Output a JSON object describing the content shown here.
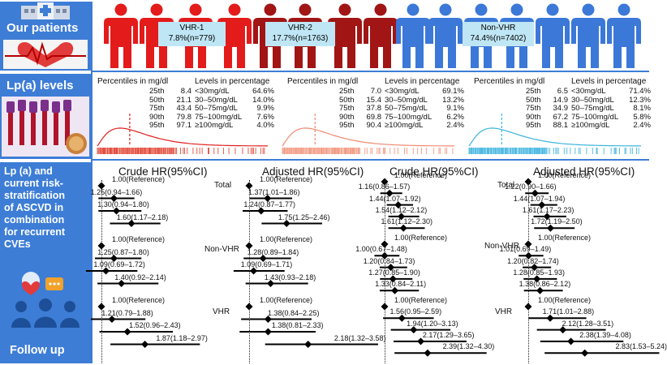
{
  "sidebar": {
    "our_patients": "Our patients",
    "lpa_levels": "Lp(a) levels",
    "risk_text": [
      "Lp (a) and",
      "current risk-",
      "stratification",
      "of ASCVD in",
      "combination",
      "for recurrent",
      "CVEs"
    ],
    "follow_up": "Follow up"
  },
  "colors": {
    "vhr1": "#e31b1b",
    "vhr2": "#a11515",
    "nonvhr": "#3b78d8",
    "accent": "#3d7dd6"
  },
  "groups": [
    {
      "name": "VHR-1",
      "share": "7.8%(n=779)",
      "color": "#e31b1b",
      "pct_title": "Percentiles in mg/dl",
      "lvl_title": "Levels in percentage",
      "percentiles": [
        [
          "25th",
          "8.4"
        ],
        [
          "50th",
          "21.1"
        ],
        [
          "75th",
          "43.4"
        ],
        [
          "90th",
          "79.8"
        ],
        [
          "95th",
          "97.1"
        ]
      ],
      "levels": [
        [
          "<30mg/dL",
          "64.6%"
        ],
        [
          "30–50mg/dL",
          "14.0%"
        ],
        [
          "50–75mg/dL",
          "9.9%"
        ],
        [
          "75–100mg/dL",
          "7.6%"
        ],
        [
          "≥100mg/dL",
          "4.0%"
        ]
      ],
      "curve_color": "#e02020",
      "rug_color": "#e24a3a"
    },
    {
      "name": "VHR-2",
      "share": "17.7%(n=1763)",
      "color": "#a11515",
      "pct_title": "Percentiles in mg/dl",
      "lvl_title": "Levels in percentage",
      "percentiles": [
        [
          "25th",
          "7.0"
        ],
        [
          "50th",
          "15.4"
        ],
        [
          "75th",
          "37.8"
        ],
        [
          "90th",
          "69.8"
        ],
        [
          "95th",
          "90.4"
        ]
      ],
      "levels": [
        [
          "<30mg/dL",
          "69.1%"
        ],
        [
          "30–50mg/dL",
          "13.2%"
        ],
        [
          "50–75mg/dL",
          "9.1%"
        ],
        [
          "75–100mg/dL",
          "6.2%"
        ],
        [
          "≥100mg/dL",
          "2.4%"
        ]
      ],
      "curve_color": "#f08a70",
      "rug_color": "#f39a82"
    },
    {
      "name": "Non-VHR",
      "share": "74.4%(n=7402)",
      "color": "#3b78d8",
      "pct_title": "Percentiles in mg/dl",
      "lvl_title": "Levels in percentage",
      "percentiles": [
        [
          "25th",
          "6.5"
        ],
        [
          "50th",
          "14.9"
        ],
        [
          "75th",
          "34.9"
        ],
        [
          "90th",
          "67.2"
        ],
        [
          "95th",
          "88.1"
        ]
      ],
      "levels": [
        [
          "<30mg/dL",
          "71.4%"
        ],
        [
          "30–50mg/dL",
          "12.3%"
        ],
        [
          "50–75mg/dL",
          "8.1%"
        ],
        [
          "75–100mg/dL",
          "5.8%"
        ],
        [
          "≥100mg/dL",
          "2.4%"
        ]
      ],
      "curve_color": "#3bb4dc",
      "rug_color": "#4ab8e0"
    }
  ],
  "forest": {
    "row_labels": [
      "Total",
      "Non-VHR",
      "VHR"
    ],
    "panels": [
      {
        "title": "Crude HR(95%CI)",
        "blocks": [
          [
            {
              "hr": 1.0,
              "lo": 1.0,
              "hi": 1.0,
              "text": "1.00(Reference)"
            },
            {
              "hr": 1.25,
              "lo": 0.94,
              "hi": 1.66,
              "text": "1.25(0.94–1.66)"
            },
            {
              "hr": 1.3,
              "lo": 0.94,
              "hi": 1.8,
              "text": "1.30(0.94–1.80)"
            },
            {
              "hr": 1.6,
              "lo": 1.17,
              "hi": 2.18,
              "text": "1.60(1.17–2.18)"
            }
          ],
          [
            {
              "hr": 1.0,
              "lo": 1.0,
              "hi": 1.0,
              "text": "1.00(Reference)"
            },
            {
              "hr": 1.25,
              "lo": 0.87,
              "hi": 1.8,
              "text": "1.25(0.87–1.80)"
            },
            {
              "hr": 1.09,
              "lo": 0.69,
              "hi": 1.72,
              "text": "1.09(0.69–1.72)"
            },
            {
              "hr": 1.4,
              "lo": 0.92,
              "hi": 2.14,
              "text": "1.40(0.92–2.14)"
            }
          ],
          [
            {
              "hr": 1.0,
              "lo": 1.0,
              "hi": 1.0,
              "text": "1.00(Reference)"
            },
            {
              "hr": 1.21,
              "lo": 0.79,
              "hi": 1.88,
              "text": "1.21(0.79–1.88)"
            },
            {
              "hr": 1.52,
              "lo": 0.96,
              "hi": 2.43,
              "text": "1.52(0.96–2.43)"
            },
            {
              "hr": 1.87,
              "lo": 1.18,
              "hi": 2.97,
              "text": "1.87(1.18–2.97)"
            }
          ]
        ]
      },
      {
        "title": "Adjusted HR(95%CI)",
        "blocks": [
          [
            {
              "hr": 1.0,
              "lo": 1.0,
              "hi": 1.0,
              "text": "1.00(Reference)"
            },
            {
              "hr": 1.37,
              "lo": 1.01,
              "hi": 1.86,
              "text": "1.37(1.01–1.86)"
            },
            {
              "hr": 1.24,
              "lo": 0.87,
              "hi": 1.77,
              "text": "1.24(0.87–1.77)"
            },
            {
              "hr": 1.75,
              "lo": 1.25,
              "hi": 2.46,
              "text": "1.75(1.25–2.46)"
            }
          ],
          [
            {
              "hr": 1.0,
              "lo": 1.0,
              "hi": 1.0,
              "text": "1.00(Reference)"
            },
            {
              "hr": 1.28,
              "lo": 0.89,
              "hi": 1.84,
              "text": "1.28(0.89–1.84)"
            },
            {
              "hr": 1.09,
              "lo": 0.69,
              "hi": 1.71,
              "text": "1.09(0.69–1.71)"
            },
            {
              "hr": 1.43,
              "lo": 0.93,
              "hi": 2.18,
              "text": "1.43(0.93–2.18)"
            }
          ],
          [
            {
              "hr": 1.0,
              "lo": 1.0,
              "hi": 1.0,
              "text": "1.00(Reference)"
            },
            {
              "hr": 1.38,
              "lo": 0.84,
              "hi": 2.25,
              "text": "1.38(0.84–2.25)"
            },
            {
              "hr": 1.38,
              "lo": 0.81,
              "hi": 2.33,
              "text": "1.38(0.81–2.33)"
            },
            {
              "hr": 2.18,
              "lo": 1.32,
              "hi": 3.58,
              "text": "2.18(1.32–3.58)"
            }
          ]
        ]
      },
      {
        "title": "Crude HR(95%CI)",
        "blocks": [
          [
            {
              "hr": 1.0,
              "lo": 1.0,
              "hi": 1.0,
              "text": "1.00(Reference)"
            },
            {
              "hr": 1.16,
              "lo": 0.86,
              "hi": 1.57,
              "text": "1.16(0.86–1.57)"
            },
            {
              "hr": 1.44,
              "lo": 1.07,
              "hi": 1.92,
              "text": "1.44(1.07–1.92)"
            },
            {
              "hr": 1.54,
              "lo": 1.12,
              "hi": 2.12,
              "text": "1.54(1.12–2.12)"
            },
            {
              "hr": 1.61,
              "lo": 1.12,
              "hi": 2.3,
              "text": "1.61(1.12–2.30)"
            }
          ],
          [
            {
              "hr": 1.0,
              "lo": 1.0,
              "hi": 1.0,
              "text": "1.00(Reference)"
            },
            {
              "hr": 1.0,
              "lo": 0.67,
              "hi": 1.48,
              "text": "1.00(0.67–1.48)"
            },
            {
              "hr": 1.2,
              "lo": 0.84,
              "hi": 1.73,
              "text": "1.20(0.84–1.73)"
            },
            {
              "hr": 1.27,
              "lo": 0.85,
              "hi": 1.9,
              "text": "1.27(0.85–1.90)"
            },
            {
              "hr": 1.33,
              "lo": 0.84,
              "hi": 2.11,
              "text": "1.33(0.84–2.11)"
            }
          ],
          [
            {
              "hr": 1.0,
              "lo": 1.0,
              "hi": 1.0,
              "text": "1.00(Reference)"
            },
            {
              "hr": 1.56,
              "lo": 0.95,
              "hi": 2.59,
              "text": "1.56(0.95–2.59)"
            },
            {
              "hr": 1.94,
              "lo": 1.2,
              "hi": 3.13,
              "text": "1.94(1.20–3.13)"
            },
            {
              "hr": 2.17,
              "lo": 1.29,
              "hi": 3.65,
              "text": "2.17(1.29–3.65)"
            },
            {
              "hr": 2.39,
              "lo": 1.32,
              "hi": 4.3,
              "text": "2.39(1.32–4.30)"
            }
          ]
        ]
      },
      {
        "title": "Adjusted HR(95%CI)",
        "blocks": [
          [
            {
              "hr": 1.0,
              "lo": 1.0,
              "hi": 1.0,
              "text": "1.00(Reference)"
            },
            {
              "hr": 1.22,
              "lo": 0.9,
              "hi": 1.66,
              "text": "1.22(0.90–1.66)"
            },
            {
              "hr": 1.44,
              "lo": 1.07,
              "hi": 1.94,
              "text": "1.44(1.07–1.94)"
            },
            {
              "hr": 1.61,
              "lo": 1.17,
              "hi": 2.23,
              "text": "1.61(1.17–2.23)"
            },
            {
              "hr": 1.72,
              "lo": 1.19,
              "hi": 2.5,
              "text": "1.72(1.19–2.50)"
            }
          ],
          [
            {
              "hr": 1.0,
              "lo": 1.0,
              "hi": 1.0,
              "text": "1.00(Reference)"
            },
            {
              "hr": 1.01,
              "lo": 0.69,
              "hi": 1.49,
              "text": "1.01(0.69–1.49)"
            },
            {
              "hr": 1.2,
              "lo": 0.82,
              "hi": 1.74,
              "text": "1.20(0.82–1.74)"
            },
            {
              "hr": 1.28,
              "lo": 0.85,
              "hi": 1.93,
              "text": "1.28(0.85–1.93)"
            },
            {
              "hr": 1.38,
              "lo": 0.86,
              "hi": 2.12,
              "text": "1.38(0.86–2.12)"
            }
          ],
          [
            {
              "hr": 1.0,
              "lo": 1.0,
              "hi": 1.0,
              "text": "1.00(Reference)"
            },
            {
              "hr": 1.71,
              "lo": 1.01,
              "hi": 2.88,
              "text": "1.71(1.01–2.88)"
            },
            {
              "hr": 2.12,
              "lo": 1.28,
              "hi": 3.51,
              "text": "2.12(1.28–3.51)"
            },
            {
              "hr": 2.38,
              "lo": 1.39,
              "hi": 4.08,
              "text": "2.38(1.39–4.08)"
            },
            {
              "hr": 2.83,
              "lo": 1.53,
              "hi": 5.24,
              "text": "2.83(1.53–5.24)"
            }
          ]
        ]
      }
    ]
  }
}
